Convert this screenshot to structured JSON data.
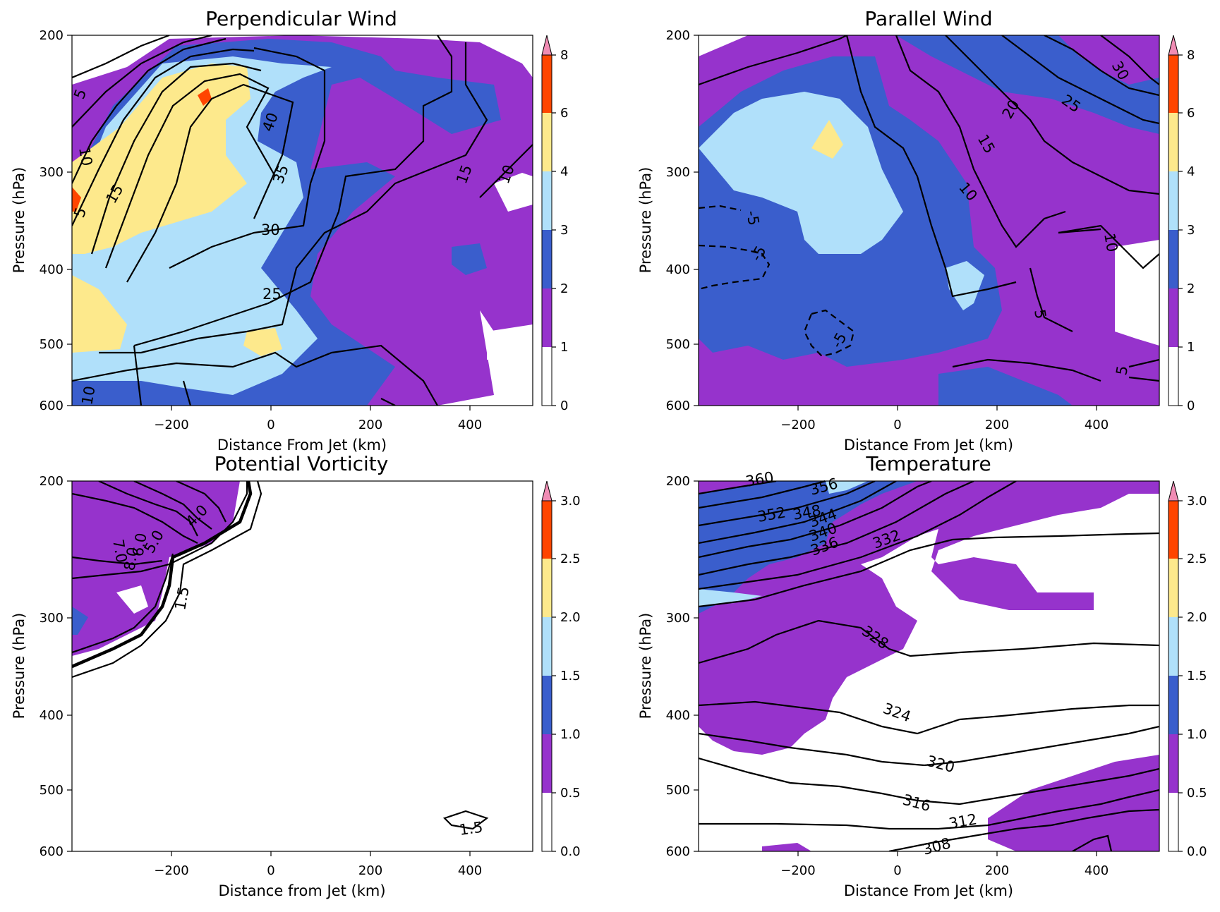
{
  "palette": {
    "levels": [
      "#ffffff",
      "#9633cc",
      "#3a5ecc",
      "#b0e0fa",
      "#fde98c",
      "#ff4500",
      "#f08cb4"
    ]
  },
  "panels": [
    {
      "key": "perp",
      "title": "Perpendicular Wind",
      "xlabel": "Distance From Jet (km)",
      "ylabel": "Pressure (hPa)",
      "colorbar_ticks": [
        "0",
        "1",
        "2",
        "3",
        "4",
        "6",
        "8"
      ],
      "contour_labels": [
        "5",
        "10",
        "15",
        "5",
        "40",
        "35",
        "30",
        "25",
        "15",
        "10",
        "10"
      ]
    },
    {
      "key": "para",
      "title": "Parallel Wind",
      "xlabel": "Distance From Jet (km)",
      "ylabel": "Pressure (hPa)",
      "colorbar_ticks": [
        "0",
        "1",
        "2",
        "3",
        "4",
        "6",
        "8"
      ],
      "contour_labels": [
        "30",
        "25",
        "20",
        "15",
        "10",
        "10",
        "-5",
        "-5",
        "-5",
        "5",
        "5"
      ]
    },
    {
      "key": "pv",
      "title": "Potential Vorticity",
      "xlabel": "Distance from Jet (km)",
      "ylabel": "Pressure (hPa)",
      "colorbar_ticks": [
        "0.0",
        "0.5",
        "1.0",
        "1.5",
        "2.0",
        "2.5",
        "3.0"
      ],
      "contour_labels": [
        "4.0",
        "5.0",
        "6.0",
        "7.0",
        "8.0",
        "1.5",
        "1.5"
      ]
    },
    {
      "key": "temp",
      "title": "Temperature",
      "xlabel": "Distance From Jet (km)",
      "ylabel": "Pressure (hPa)",
      "colorbar_ticks": [
        "0.0",
        "0.5",
        "1.0",
        "1.5",
        "2.0",
        "2.5",
        "3.0"
      ],
      "contour_labels": [
        "360",
        "356",
        "352",
        "348",
        "344",
        "340",
        "336",
        "332",
        "328",
        "324",
        "320",
        "316",
        "312",
        "308"
      ]
    }
  ],
  "chart_data": [
    {
      "type": "contour",
      "title": "Perpendicular Wind",
      "xlabel": "Distance From Jet (km)",
      "ylabel": "Pressure (hPa)",
      "xlim": [
        -395,
        525
      ],
      "ylim": [
        600,
        200
      ],
      "yscale": "log",
      "xticks": [
        -200,
        0,
        200,
        400
      ],
      "yticks": [
        200,
        300,
        400,
        500,
        600
      ],
      "fill_levels": [
        0,
        1,
        2,
        3,
        4,
        6,
        8
      ],
      "fill_extend": "max",
      "contour_levels": [
        5,
        10,
        15,
        20,
        25,
        30,
        35,
        40
      ],
      "max_contour_near": {
        "x": -130,
        "p": 240
      }
    },
    {
      "type": "contour",
      "title": "Parallel Wind",
      "xlabel": "Distance From Jet (km)",
      "ylabel": "Pressure (hPa)",
      "xlim": [
        -395,
        525
      ],
      "ylim": [
        600,
        200
      ],
      "yscale": "log",
      "xticks": [
        -200,
        0,
        200,
        400
      ],
      "yticks": [
        200,
        300,
        400,
        500,
        600
      ],
      "fill_levels": [
        0,
        1,
        2,
        3,
        4,
        6,
        8
      ],
      "fill_extend": "max",
      "contour_levels": [
        -5,
        5,
        10,
        15,
        20,
        25,
        30
      ]
    },
    {
      "type": "contour",
      "title": "Potential Vorticity",
      "xlabel": "Distance from Jet (km)",
      "ylabel": "Pressure (hPa)",
      "xlim": [
        -395,
        525
      ],
      "ylim": [
        600,
        200
      ],
      "yscale": "log",
      "xticks": [
        -200,
        0,
        200,
        400
      ],
      "yticks": [
        200,
        300,
        400,
        500,
        600
      ],
      "fill_levels": [
        0.0,
        0.5,
        1.0,
        1.5,
        2.0,
        2.5,
        3.0
      ],
      "fill_extend": "max",
      "contour_levels": [
        1.5,
        4.0,
        5.0,
        6.0,
        7.0,
        8.0
      ],
      "highlight_contour": 2.0
    },
    {
      "type": "contour",
      "title": "Temperature",
      "xlabel": "Distance From Jet (km)",
      "ylabel": "Pressure (hPa)",
      "xlim": [
        -395,
        525
      ],
      "ylim": [
        600,
        200
      ],
      "yscale": "log",
      "xticks": [
        -200,
        0,
        200,
        400
      ],
      "yticks": [
        200,
        300,
        400,
        500,
        600
      ],
      "fill_levels": [
        0.0,
        0.5,
        1.0,
        1.5,
        2.0,
        2.5,
        3.0
      ],
      "fill_extend": "max",
      "contour_levels": [
        308,
        312,
        316,
        320,
        324,
        328,
        332,
        336,
        340,
        344,
        348,
        352,
        356,
        360
      ]
    }
  ]
}
